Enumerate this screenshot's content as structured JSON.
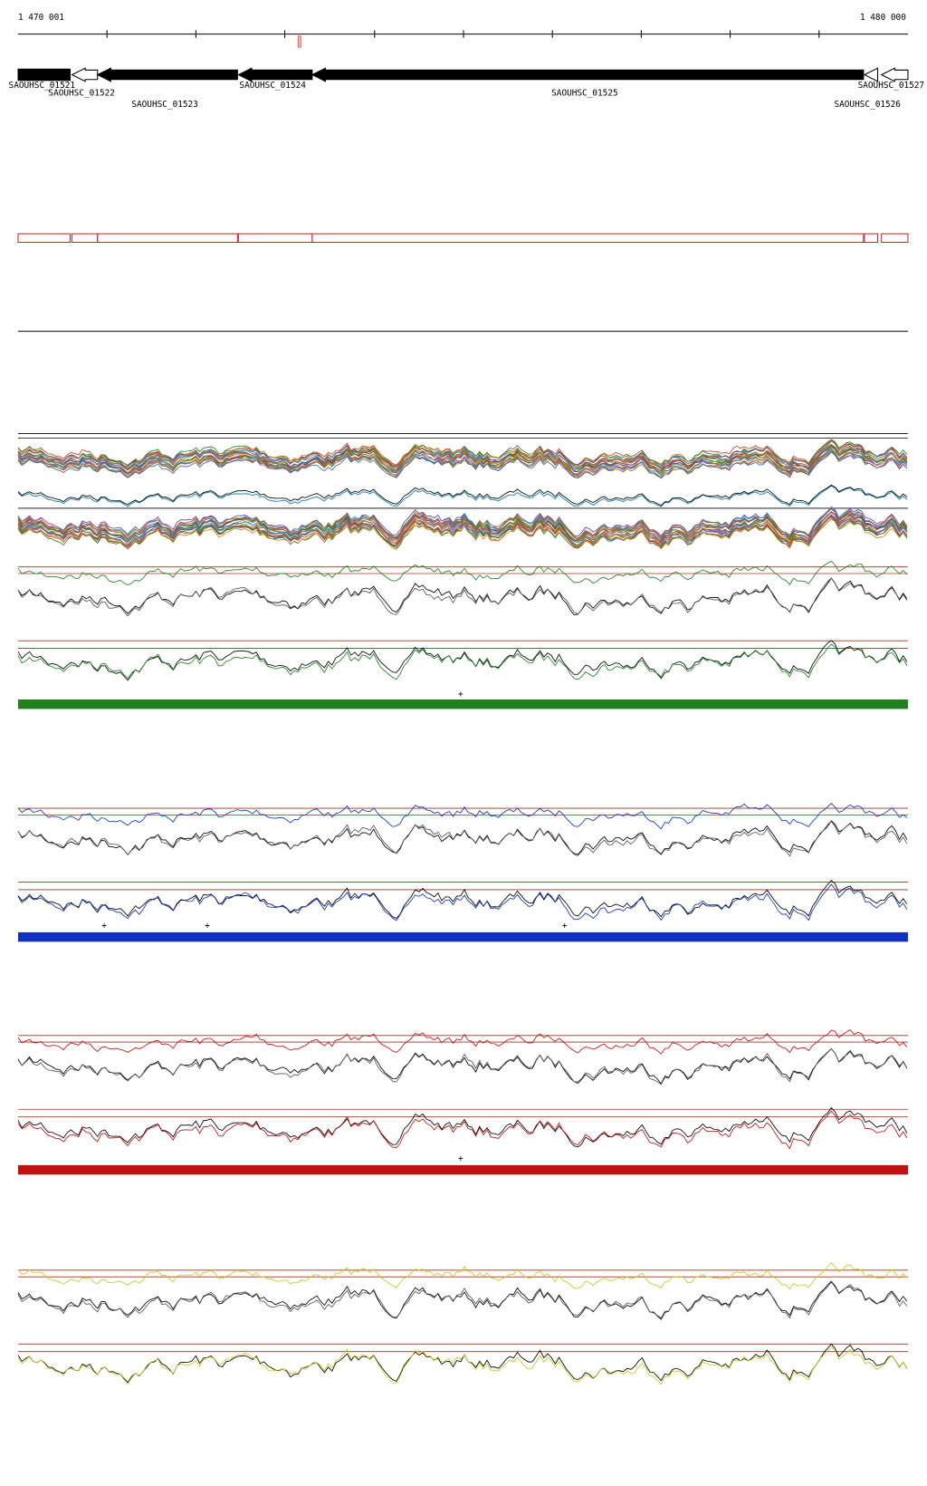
{
  "ruler": {
    "start_label": "1 470 001",
    "end_label": "1 480 000"
  },
  "genes": [
    "SAOUHSC_01521",
    "SAOUHSC_01522",
    "SAOUHSC_01523",
    "SAOUHSC_01524",
    "SAOUHSC_01525",
    "SAOUHSC_01526",
    "SAOUHSC_01527"
  ],
  "strand_markers": [
    "+",
    "+",
    "+",
    "+",
    "+"
  ]
}
